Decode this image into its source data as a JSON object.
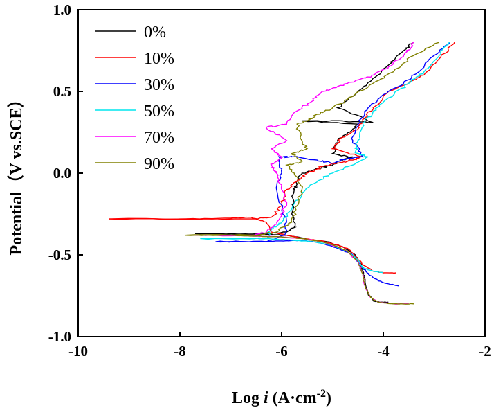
{
  "chart_data": {
    "type": "line",
    "xlabel_prefix": "Log ",
    "xlabel_var": "i",
    "xlabel_unit": " (A·cm",
    "xlabel_exp": "-2",
    "xlabel_close": ")",
    "ylabel": "Potential（V vs.SCE）",
    "xlim": [
      -10,
      -2
    ],
    "ylim": [
      -1.0,
      1.0
    ],
    "x_ticks": [
      "-10",
      "-8",
      "-6",
      "-4",
      "-2"
    ],
    "y_ticks": [
      "1.0",
      "0.5",
      "0.0",
      "-0.5",
      "-1.0"
    ],
    "grid": false,
    "legend_position": "top-left",
    "series": [
      {
        "name": "0%",
        "color": "#000000",
        "points": [
          [
            -7.7,
            -0.37
          ],
          [
            -6.9,
            -0.372
          ],
          [
            -6.2,
            -0.375
          ],
          [
            -5.9,
            -0.38
          ],
          [
            -5.7,
            -0.39
          ],
          [
            -5.4,
            -0.41
          ],
          [
            -5.1,
            -0.42
          ],
          [
            -4.8,
            -0.45
          ],
          [
            -4.55,
            -0.5
          ],
          [
            -4.45,
            -0.55
          ],
          [
            -4.4,
            -0.6
          ],
          [
            -4.35,
            -0.68
          ],
          [
            -4.3,
            -0.74
          ],
          [
            -4.2,
            -0.78
          ],
          [
            -4.05,
            -0.79
          ],
          [
            -3.9,
            -0.79
          ]
        ],
        "anodic": [
          [
            -7.7,
            -0.37
          ],
          [
            -6.2,
            -0.37
          ],
          [
            -5.9,
            -0.36
          ],
          [
            -5.75,
            -0.33
          ],
          [
            -5.8,
            -0.25
          ],
          [
            -5.75,
            -0.1
          ],
          [
            -5.7,
            -0.05
          ],
          [
            -5.6,
            0.0
          ],
          [
            -5.3,
            0.03
          ],
          [
            -5.0,
            0.05
          ],
          [
            -4.8,
            0.08
          ],
          [
            -4.6,
            0.1
          ],
          [
            -5.0,
            0.12
          ],
          [
            -4.9,
            0.2
          ],
          [
            -4.6,
            0.27
          ],
          [
            -4.5,
            0.3
          ],
          [
            -5.6,
            0.32
          ],
          [
            -4.8,
            0.32
          ],
          [
            -4.2,
            0.31
          ],
          [
            -4.9,
            0.4
          ],
          [
            -4.5,
            0.5
          ],
          [
            -4.2,
            0.58
          ],
          [
            -3.9,
            0.66
          ],
          [
            -3.6,
            0.75
          ],
          [
            -3.4,
            0.8
          ]
        ]
      },
      {
        "name": "10%",
        "color": "#ff0000",
        "points": [
          [
            -9.4,
            -0.28
          ],
          [
            -8.0,
            -0.28
          ],
          [
            -7.0,
            -0.275
          ],
          [
            -6.6,
            -0.27
          ],
          [
            -6.3,
            -0.3
          ],
          [
            -6.2,
            -0.36
          ],
          [
            -5.9,
            -0.38
          ],
          [
            -5.6,
            -0.4
          ],
          [
            -5.3,
            -0.41
          ],
          [
            -5.0,
            -0.43
          ],
          [
            -4.7,
            -0.46
          ],
          [
            -4.5,
            -0.52
          ],
          [
            -4.4,
            -0.56
          ],
          [
            -4.2,
            -0.6
          ],
          [
            -4.0,
            -0.61
          ],
          [
            -3.75,
            -0.61
          ]
        ],
        "anodic": [
          [
            -9.4,
            -0.28
          ],
          [
            -6.5,
            -0.28
          ],
          [
            -6.2,
            -0.27
          ],
          [
            -6.0,
            -0.2
          ],
          [
            -5.9,
            -0.1
          ],
          [
            -5.7,
            -0.05
          ],
          [
            -5.5,
            0.0
          ],
          [
            -5.2,
            0.04
          ],
          [
            -4.9,
            0.06
          ],
          [
            -4.6,
            0.08
          ],
          [
            -4.4,
            0.1
          ],
          [
            -5.0,
            0.15
          ],
          [
            -4.8,
            0.22
          ],
          [
            -4.5,
            0.27
          ],
          [
            -4.4,
            0.32
          ],
          [
            -4.2,
            0.4
          ],
          [
            -3.9,
            0.5
          ],
          [
            -3.5,
            0.55
          ],
          [
            -3.2,
            0.6
          ],
          [
            -2.9,
            0.7
          ],
          [
            -2.6,
            0.8
          ]
        ]
      },
      {
        "name": "30%",
        "color": "#0000ff",
        "points": [
          [
            -7.3,
            -0.42
          ],
          [
            -6.5,
            -0.42
          ],
          [
            -6.0,
            -0.415
          ],
          [
            -5.6,
            -0.41
          ],
          [
            -5.2,
            -0.43
          ],
          [
            -4.9,
            -0.46
          ],
          [
            -4.6,
            -0.5
          ],
          [
            -4.45,
            -0.56
          ],
          [
            -4.35,
            -0.6
          ],
          [
            -4.2,
            -0.64
          ],
          [
            -4.0,
            -0.67
          ],
          [
            -3.7,
            -0.69
          ]
        ],
        "anodic": [
          [
            -7.3,
            -0.42
          ],
          [
            -6.3,
            -0.42
          ],
          [
            -5.95,
            -0.38
          ],
          [
            -5.9,
            -0.3
          ],
          [
            -6.1,
            -0.1
          ],
          [
            -6.0,
            0.0
          ],
          [
            -6.05,
            0.1
          ],
          [
            -5.8,
            0.1
          ],
          [
            -5.3,
            0.08
          ],
          [
            -5.0,
            0.06
          ],
          [
            -4.7,
            0.09
          ],
          [
            -4.4,
            0.1
          ],
          [
            -4.6,
            0.2
          ],
          [
            -4.5,
            0.3
          ],
          [
            -4.3,
            0.4
          ],
          [
            -4.0,
            0.48
          ],
          [
            -3.6,
            0.55
          ],
          [
            -3.3,
            0.62
          ],
          [
            -3.0,
            0.72
          ],
          [
            -2.7,
            0.8
          ]
        ]
      },
      {
        "name": "50%",
        "color": "#00e5ee",
        "points": [
          [
            -7.6,
            -0.4
          ],
          [
            -6.8,
            -0.4
          ],
          [
            -6.3,
            -0.4
          ],
          [
            -5.8,
            -0.41
          ],
          [
            -5.4,
            -0.42
          ],
          [
            -5.0,
            -0.44
          ],
          [
            -4.7,
            -0.48
          ],
          [
            -4.5,
            -0.53
          ],
          [
            -4.4,
            -0.58
          ],
          [
            -4.2,
            -0.6
          ],
          [
            -4.0,
            -0.61
          ]
        ],
        "anodic": [
          [
            -7.6,
            -0.4
          ],
          [
            -6.3,
            -0.4
          ],
          [
            -6.2,
            -0.34
          ],
          [
            -6.0,
            -0.3
          ],
          [
            -5.8,
            -0.22
          ],
          [
            -5.6,
            -0.12
          ],
          [
            -5.3,
            -0.05
          ],
          [
            -5.0,
            0.0
          ],
          [
            -4.7,
            0.04
          ],
          [
            -4.3,
            0.1
          ],
          [
            -4.55,
            0.13
          ],
          [
            -4.5,
            0.2
          ],
          [
            -4.4,
            0.3
          ],
          [
            -4.2,
            0.38
          ],
          [
            -3.9,
            0.46
          ],
          [
            -3.5,
            0.55
          ],
          [
            -3.2,
            0.62
          ],
          [
            -2.9,
            0.72
          ],
          [
            -2.7,
            0.8
          ]
        ]
      },
      {
        "name": "70%",
        "color": "#ff00ff",
        "points": [
          [
            -7.8,
            -0.38
          ],
          [
            -7.0,
            -0.38
          ],
          [
            -6.5,
            -0.385
          ],
          [
            -6.0,
            -0.39
          ],
          [
            -5.6,
            -0.4
          ],
          [
            -5.2,
            -0.42
          ],
          [
            -4.9,
            -0.45
          ],
          [
            -4.7,
            -0.48
          ],
          [
            -4.5,
            -0.54
          ],
          [
            -4.4,
            -0.62
          ],
          [
            -4.35,
            -0.7
          ],
          [
            -4.25,
            -0.76
          ],
          [
            -4.1,
            -0.79
          ],
          [
            -3.8,
            -0.8
          ],
          [
            -3.5,
            -0.8
          ]
        ],
        "anodic": [
          [
            -7.8,
            -0.38
          ],
          [
            -6.5,
            -0.38
          ],
          [
            -6.3,
            -0.36
          ],
          [
            -6.1,
            -0.3
          ],
          [
            -5.9,
            -0.2
          ],
          [
            -6.0,
            -0.1
          ],
          [
            -6.1,
            0.0
          ],
          [
            -6.2,
            0.05
          ],
          [
            -6.0,
            0.1
          ],
          [
            -6.2,
            0.15
          ],
          [
            -5.9,
            0.2
          ],
          [
            -6.3,
            0.28
          ],
          [
            -5.9,
            0.3
          ],
          [
            -5.7,
            0.38
          ],
          [
            -5.4,
            0.44
          ],
          [
            -5.2,
            0.5
          ],
          [
            -4.9,
            0.53
          ],
          [
            -4.5,
            0.57
          ],
          [
            -4.2,
            0.6
          ],
          [
            -3.9,
            0.65
          ],
          [
            -3.6,
            0.72
          ],
          [
            -3.4,
            0.8
          ]
        ]
      },
      {
        "name": "90%",
        "color": "#808000",
        "points": [
          [
            -7.9,
            -0.38
          ],
          [
            -7.0,
            -0.38
          ],
          [
            -6.5,
            -0.385
          ],
          [
            -6.0,
            -0.39
          ],
          [
            -5.6,
            -0.4
          ],
          [
            -5.2,
            -0.42
          ],
          [
            -4.9,
            -0.45
          ],
          [
            -4.7,
            -0.48
          ],
          [
            -4.5,
            -0.54
          ],
          [
            -4.4,
            -0.62
          ],
          [
            -4.35,
            -0.7
          ],
          [
            -4.25,
            -0.76
          ],
          [
            -4.1,
            -0.79
          ],
          [
            -3.8,
            -0.8
          ],
          [
            -3.4,
            -0.8
          ]
        ],
        "anodic": [
          [
            -7.9,
            -0.38
          ],
          [
            -6.5,
            -0.38
          ],
          [
            -6.1,
            -0.36
          ],
          [
            -5.8,
            -0.3
          ],
          [
            -5.7,
            -0.2
          ],
          [
            -5.6,
            -0.1
          ],
          [
            -5.75,
            0.0
          ],
          [
            -5.9,
            0.05
          ],
          [
            -5.6,
            0.07
          ],
          [
            -5.8,
            0.12
          ],
          [
            -5.5,
            0.15
          ],
          [
            -5.6,
            0.2
          ],
          [
            -5.7,
            0.3
          ],
          [
            -5.5,
            0.32
          ],
          [
            -5.3,
            0.36
          ],
          [
            -5.0,
            0.4
          ],
          [
            -4.6,
            0.47
          ],
          [
            -4.2,
            0.55
          ],
          [
            -3.8,
            0.62
          ],
          [
            -3.4,
            0.72
          ],
          [
            -2.9,
            0.8
          ]
        ]
      }
    ]
  }
}
